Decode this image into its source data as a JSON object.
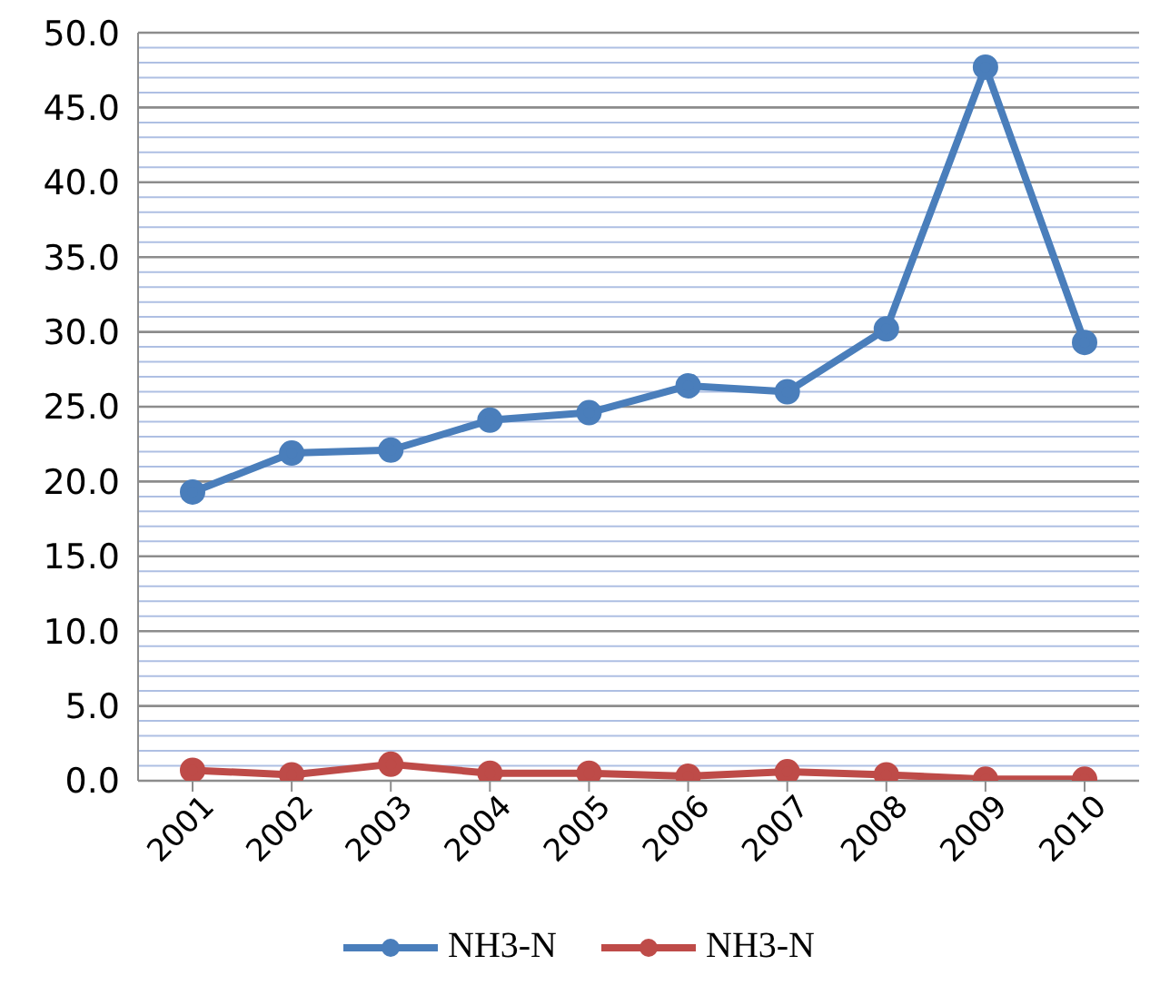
{
  "chart_data": {
    "type": "line",
    "categories": [
      "2001",
      "2002",
      "2003",
      "2004",
      "2005",
      "2006",
      "2007",
      "2008",
      "2009",
      "2010"
    ],
    "series": [
      {
        "name": "NH3-N",
        "color": "#4a7ebb",
        "values": [
          19.3,
          21.9,
          22.1,
          24.1,
          24.6,
          26.4,
          26.0,
          30.2,
          47.7,
          29.3
        ]
      },
      {
        "name": "NH3-N",
        "color": "#be4b48",
        "values": [
          0.7,
          0.4,
          1.1,
          0.5,
          0.5,
          0.3,
          0.6,
          0.4,
          0.1,
          0.1
        ]
      }
    ],
    "ylim": [
      0,
      50
    ],
    "yticks": [
      {
        "value": 0,
        "label": "0.0"
      },
      {
        "value": 1,
        "label": null
      },
      {
        "value": 2,
        "label": null
      },
      {
        "value": 3,
        "label": null
      },
      {
        "value": 4,
        "label": null
      },
      {
        "value": 5,
        "label": "5.0"
      },
      {
        "value": 6,
        "label": null
      },
      {
        "value": 7,
        "label": null
      },
      {
        "value": 8,
        "label": null
      },
      {
        "value": 9,
        "label": null
      },
      {
        "value": 10,
        "label": "10.0"
      },
      {
        "value": 11,
        "label": null
      },
      {
        "value": 12,
        "label": null
      },
      {
        "value": 13,
        "label": null
      },
      {
        "value": 14,
        "label": null
      },
      {
        "value": 15,
        "label": "15.0"
      },
      {
        "value": 16,
        "label": null
      },
      {
        "value": 17,
        "label": null
      },
      {
        "value": 18,
        "label": null
      },
      {
        "value": 19,
        "label": null
      },
      {
        "value": 20,
        "label": "20.0"
      },
      {
        "value": 21,
        "label": null
      },
      {
        "value": 22,
        "label": null
      },
      {
        "value": 23,
        "label": null
      },
      {
        "value": 24,
        "label": null
      },
      {
        "value": 25,
        "label": "25.0"
      },
      {
        "value": 26,
        "label": null
      },
      {
        "value": 27,
        "label": null
      },
      {
        "value": 28,
        "label": null
      },
      {
        "value": 29,
        "label": null
      },
      {
        "value": 30,
        "label": "30.0"
      },
      {
        "value": 31,
        "label": null
      },
      {
        "value": 32,
        "label": null
      },
      {
        "value": 33,
        "label": null
      },
      {
        "value": 34,
        "label": null
      },
      {
        "value": 35,
        "label": "35.0"
      },
      {
        "value": 36,
        "label": null
      },
      {
        "value": 37,
        "label": null
      },
      {
        "value": 38,
        "label": null
      },
      {
        "value": 39,
        "label": null
      },
      {
        "value": 40,
        "label": "40.0"
      },
      {
        "value": 41,
        "label": null
      },
      {
        "value": 42,
        "label": null
      },
      {
        "value": 43,
        "label": null
      },
      {
        "value": 44,
        "label": null
      },
      {
        "value": 45,
        "label": "45.0"
      },
      {
        "value": 46,
        "label": null
      },
      {
        "value": 47,
        "label": null
      },
      {
        "value": 48,
        "label": null
      },
      {
        "value": 49,
        "label": null
      },
      {
        "value": 50,
        "label": "50.0"
      }
    ],
    "grid": "y",
    "legend": "bottom",
    "marker": "circle",
    "line_style": "solid"
  }
}
